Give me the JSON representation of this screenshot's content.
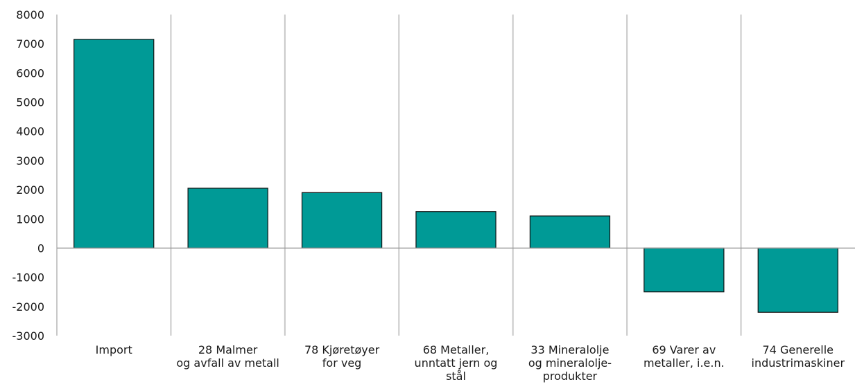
{
  "chart_data": {
    "type": "bar",
    "title": "",
    "xlabel": "",
    "ylabel": "",
    "ylim": [
      -3000,
      8000
    ],
    "yticks": [
      8000,
      7000,
      6000,
      5000,
      4000,
      3000,
      2000,
      1000,
      0,
      -1000,
      -2000,
      -3000
    ],
    "yticks_text": [
      "8000",
      "7000",
      "6000",
      "5000",
      "4000",
      "3000",
      "2000",
      "1000",
      "0",
      "-1000",
      "-2000",
      "-3000"
    ],
    "grid": "vertical",
    "bar_color": "#009a96",
    "grid_color": "#c8c8c8",
    "categories": [
      {
        "lines": [
          "Import"
        ]
      },
      {
        "lines": [
          "28  Malmer",
          "og avfall av metall"
        ]
      },
      {
        "lines": [
          "78  Kjøretøyer",
          "for veg"
        ]
      },
      {
        "lines": [
          "68  Metaller,",
          "unntatt jern og",
          "stål"
        ]
      },
      {
        "lines": [
          "33  Mineralolje",
          "og mineralolje-",
          "produkter"
        ]
      },
      {
        "lines": [
          "69  Varer av",
          "metaller, i.e.n."
        ]
      },
      {
        "lines": [
          "74  Generelle",
          "industrimaskiner"
        ]
      }
    ],
    "values": [
      7150,
      2050,
      1900,
      1250,
      1100,
      -1500,
      -2200
    ]
  }
}
